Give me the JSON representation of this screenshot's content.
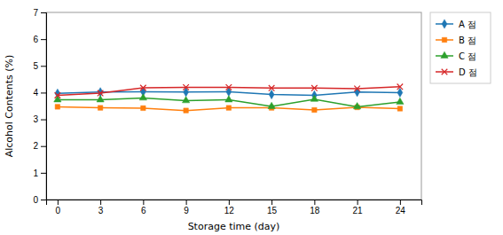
{
  "chart_data": {
    "type": "line",
    "x": [
      0,
      3,
      6,
      9,
      12,
      15,
      18,
      21,
      24
    ],
    "series": [
      {
        "name": "A 점",
        "marker": "diamond",
        "values": [
          3.97,
          4.02,
          4.03,
          4.02,
          4.03,
          3.93,
          3.9,
          4.02,
          4.0
        ]
      },
      {
        "name": "B 점",
        "marker": "square",
        "values": [
          3.47,
          3.43,
          3.42,
          3.33,
          3.43,
          3.43,
          3.35,
          3.45,
          3.4
        ]
      },
      {
        "name": "C 점",
        "marker": "triangle",
        "values": [
          3.73,
          3.73,
          3.8,
          3.7,
          3.73,
          3.48,
          3.75,
          3.47,
          3.65
        ]
      },
      {
        "name": "D 점",
        "marker": "x",
        "values": [
          3.9,
          3.98,
          4.18,
          4.2,
          4.2,
          4.17,
          4.17,
          4.15,
          4.22
        ]
      }
    ],
    "xlabel": "Storage time (day)",
    "ylabel": "Alcohol Contents (%)",
    "xlim": [
      -0.8,
      25.5
    ],
    "ylim": [
      0,
      7
    ],
    "xticks": [
      0,
      3,
      6,
      9,
      12,
      15,
      18,
      21,
      24
    ],
    "yticks": [
      0,
      1,
      2,
      3,
      4,
      5,
      6,
      7
    ],
    "grid": false,
    "legend": "right"
  }
}
